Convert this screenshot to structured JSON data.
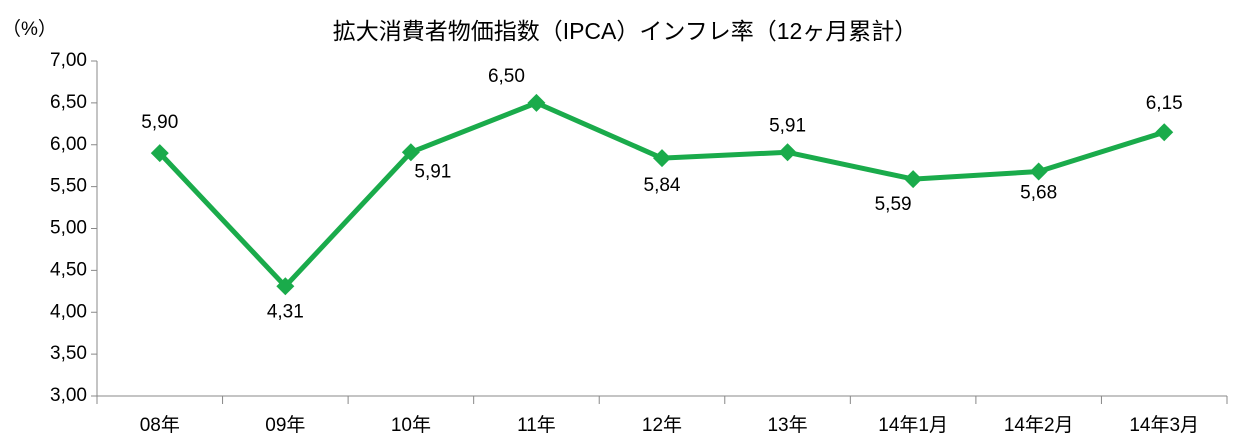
{
  "chart_data": {
    "type": "line",
    "title": "拡大消費者物価指数（IPCA）インフレ率（12ヶ月累計）",
    "y_axis_label": "（%）",
    "categories": [
      "08年",
      "09年",
      "10年",
      "11年",
      "12年",
      "13年",
      "14年1月",
      "14年2月",
      "14年3月"
    ],
    "values": [
      5.9,
      4.31,
      5.91,
      6.5,
      5.84,
      5.91,
      5.59,
      5.68,
      6.15
    ],
    "value_labels": [
      "5,90",
      "4,31",
      "5,91",
      "6,50",
      "5,84",
      "5,91",
      "5,59",
      "5,68",
      "6,15"
    ],
    "color": "#1aab4b",
    "ylim": [
      3,
      7
    ],
    "yticks": [
      {
        "value": 3,
        "label": "3,00"
      },
      {
        "value": 3.5,
        "label": "3,50"
      },
      {
        "value": 4,
        "label": "4,00"
      },
      {
        "value": 4.5,
        "label": "4,50"
      },
      {
        "value": 5,
        "label": "5,00"
      },
      {
        "value": 5.5,
        "label": "5,50"
      },
      {
        "value": 6,
        "label": "6,00"
      },
      {
        "value": 6.5,
        "label": "6,50"
      },
      {
        "value": 7,
        "label": "7,00"
      }
    ],
    "grid": false
  }
}
